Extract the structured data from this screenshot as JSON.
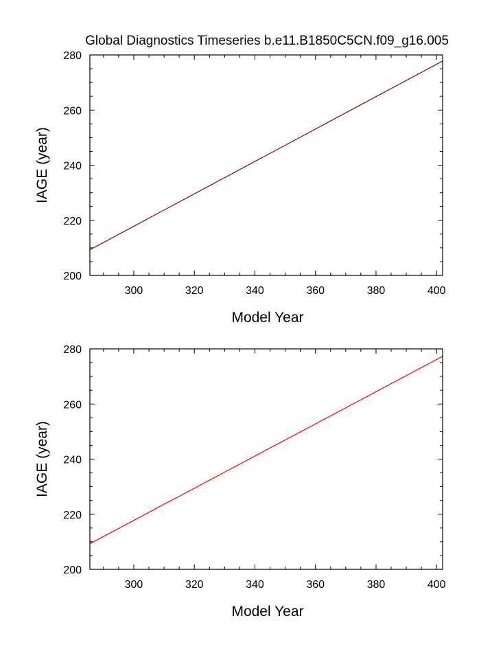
{
  "chart_data": [
    {
      "type": "line",
      "title": "Global Diagnostics Timeseries b.e11.B1850C5CN.f09_g16.005",
      "xlabel": "Model Year",
      "ylabel": "IAGE (year)",
      "xlim": [
        285.5,
        402
      ],
      "ylim": [
        200,
        280
      ],
      "xticks": [
        300,
        320,
        340,
        360,
        380,
        400
      ],
      "yticks": [
        200,
        220,
        240,
        260,
        280
      ],
      "grid": false,
      "series": [
        {
          "color": "#8b0000",
          "x": [
            285.5,
            402
          ],
          "y": [
            209.3,
            277.8
          ]
        }
      ]
    },
    {
      "type": "line",
      "title": "",
      "xlabel": "Model Year",
      "ylabel": "IAGE (year)",
      "xlim": [
        285.5,
        402
      ],
      "ylim": [
        200,
        280
      ],
      "xticks": [
        300,
        320,
        340,
        360,
        380,
        400
      ],
      "yticks": [
        200,
        220,
        240,
        260,
        280
      ],
      "grid": false,
      "series": [
        {
          "color": "#ff0000",
          "x": [
            285.5,
            402
          ],
          "y": [
            209.3,
            277.3
          ]
        }
      ]
    }
  ]
}
